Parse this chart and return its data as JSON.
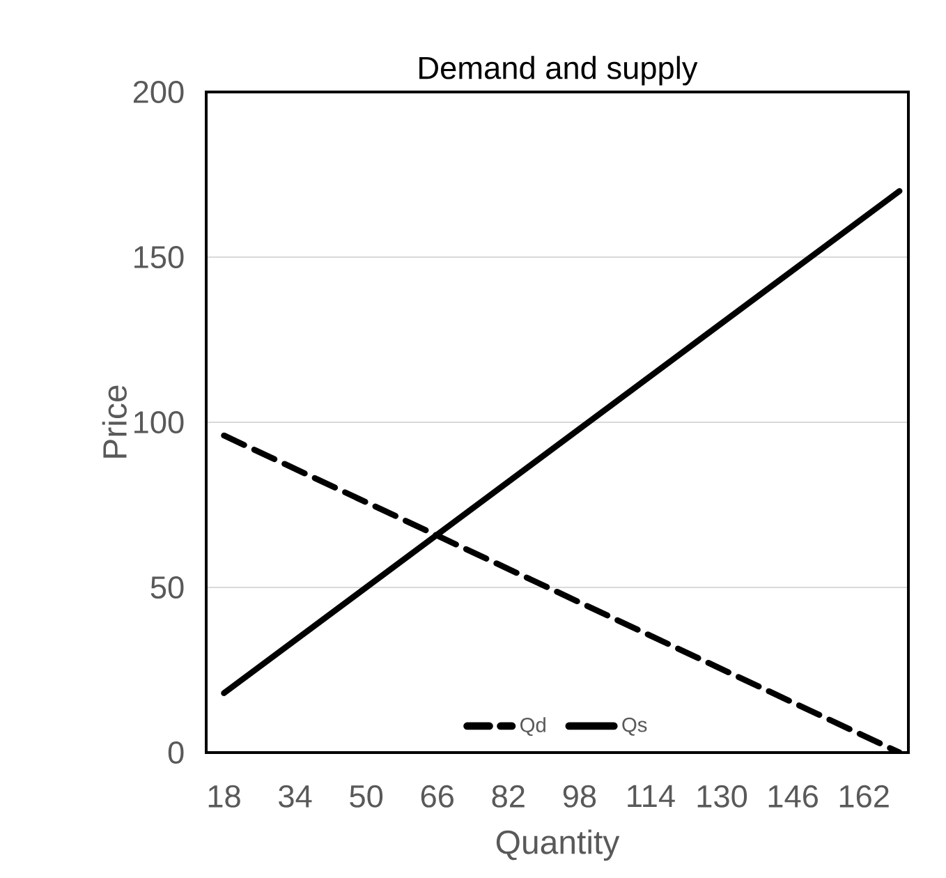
{
  "chart_data": {
    "type": "line",
    "title": "Demand and supply",
    "xlabel": "Quantity",
    "ylabel": "Price",
    "xlim": [
      14,
      172
    ],
    "xticks": [
      18,
      34,
      50,
      66,
      82,
      98,
      114,
      130,
      146,
      162
    ],
    "ylim": [
      0,
      200
    ],
    "yticks": [
      0,
      50,
      100,
      150,
      200
    ],
    "x": [
      18,
      170
    ],
    "series": [
      {
        "name": "Qd",
        "color": "#000000",
        "line_style": "dashed",
        "values": [
          96,
          0
        ]
      },
      {
        "name": "Qs",
        "color": "#000000",
        "line_style": "solid",
        "values": [
          18,
          170
        ]
      }
    ],
    "grid": "y",
    "legend": "bottom",
    "marker": "none"
  }
}
